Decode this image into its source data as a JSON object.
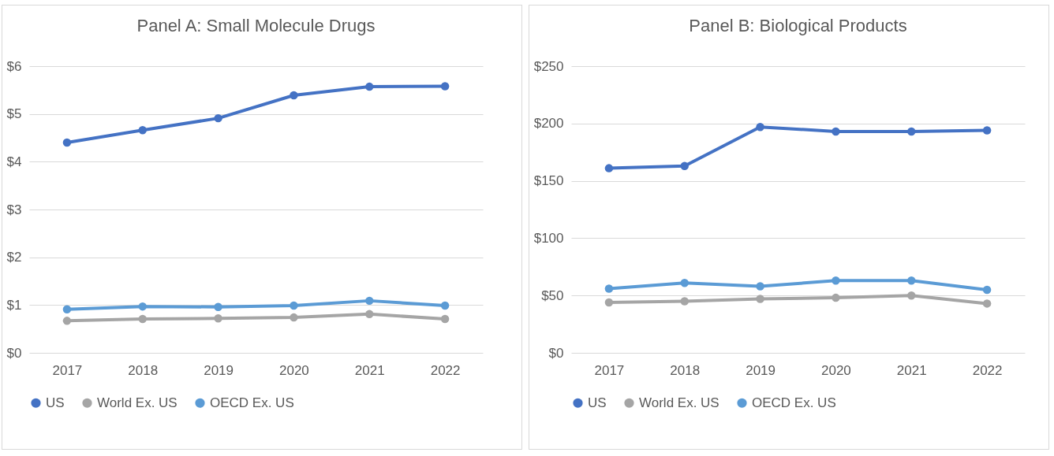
{
  "chart_data": [
    {
      "type": "line",
      "title": "Panel A: Small Molecule Drugs",
      "categories": [
        "2017",
        "2018",
        "2019",
        "2020",
        "2021",
        "2022"
      ],
      "series": [
        {
          "name": "US",
          "color": "#4472c4",
          "values": [
            4.4,
            4.66,
            4.91,
            5.39,
            5.57,
            5.58
          ]
        },
        {
          "name": "World Ex. US",
          "color": "#a5a5a5",
          "values": [
            0.67,
            0.71,
            0.72,
            0.74,
            0.81,
            0.71
          ]
        },
        {
          "name": "OECD Ex. US",
          "color": "#5b9bd5",
          "values": [
            0.91,
            0.97,
            0.96,
            0.99,
            1.09,
            0.99
          ]
        }
      ],
      "ylim": [
        0,
        6
      ],
      "yticks": [
        {
          "value": 0,
          "label": "$0"
        },
        {
          "value": 1,
          "label": "$1"
        },
        {
          "value": 2,
          "label": "$2"
        },
        {
          "value": 3,
          "label": "$3"
        },
        {
          "value": 4,
          "label": "$4"
        },
        {
          "value": 5,
          "label": "$5"
        },
        {
          "value": 6,
          "label": "$6"
        }
      ],
      "grid": "y",
      "legend": "bottom",
      "marker": "circle"
    },
    {
      "type": "line",
      "title": "Panel B: Biological Products",
      "categories": [
        "2017",
        "2018",
        "2019",
        "2020",
        "2021",
        "2022"
      ],
      "series": [
        {
          "name": "US",
          "color": "#4472c4",
          "values": [
            161,
            163,
            197,
            193,
            193,
            194
          ]
        },
        {
          "name": "World Ex. US",
          "color": "#a5a5a5",
          "values": [
            44,
            45,
            47,
            48,
            50,
            43
          ]
        },
        {
          "name": "OECD Ex. US",
          "color": "#5b9bd5",
          "values": [
            56,
            61,
            58,
            63,
            63,
            55
          ]
        }
      ],
      "ylim": [
        0,
        250
      ],
      "yticks": [
        {
          "value": 0,
          "label": "$0"
        },
        {
          "value": 50,
          "label": "$50"
        },
        {
          "value": 100,
          "label": "$100"
        },
        {
          "value": 150,
          "label": "$150"
        },
        {
          "value": 200,
          "label": "$200"
        },
        {
          "value": 250,
          "label": "$250"
        }
      ],
      "grid": "y",
      "legend": "bottom",
      "marker": "circle"
    }
  ]
}
